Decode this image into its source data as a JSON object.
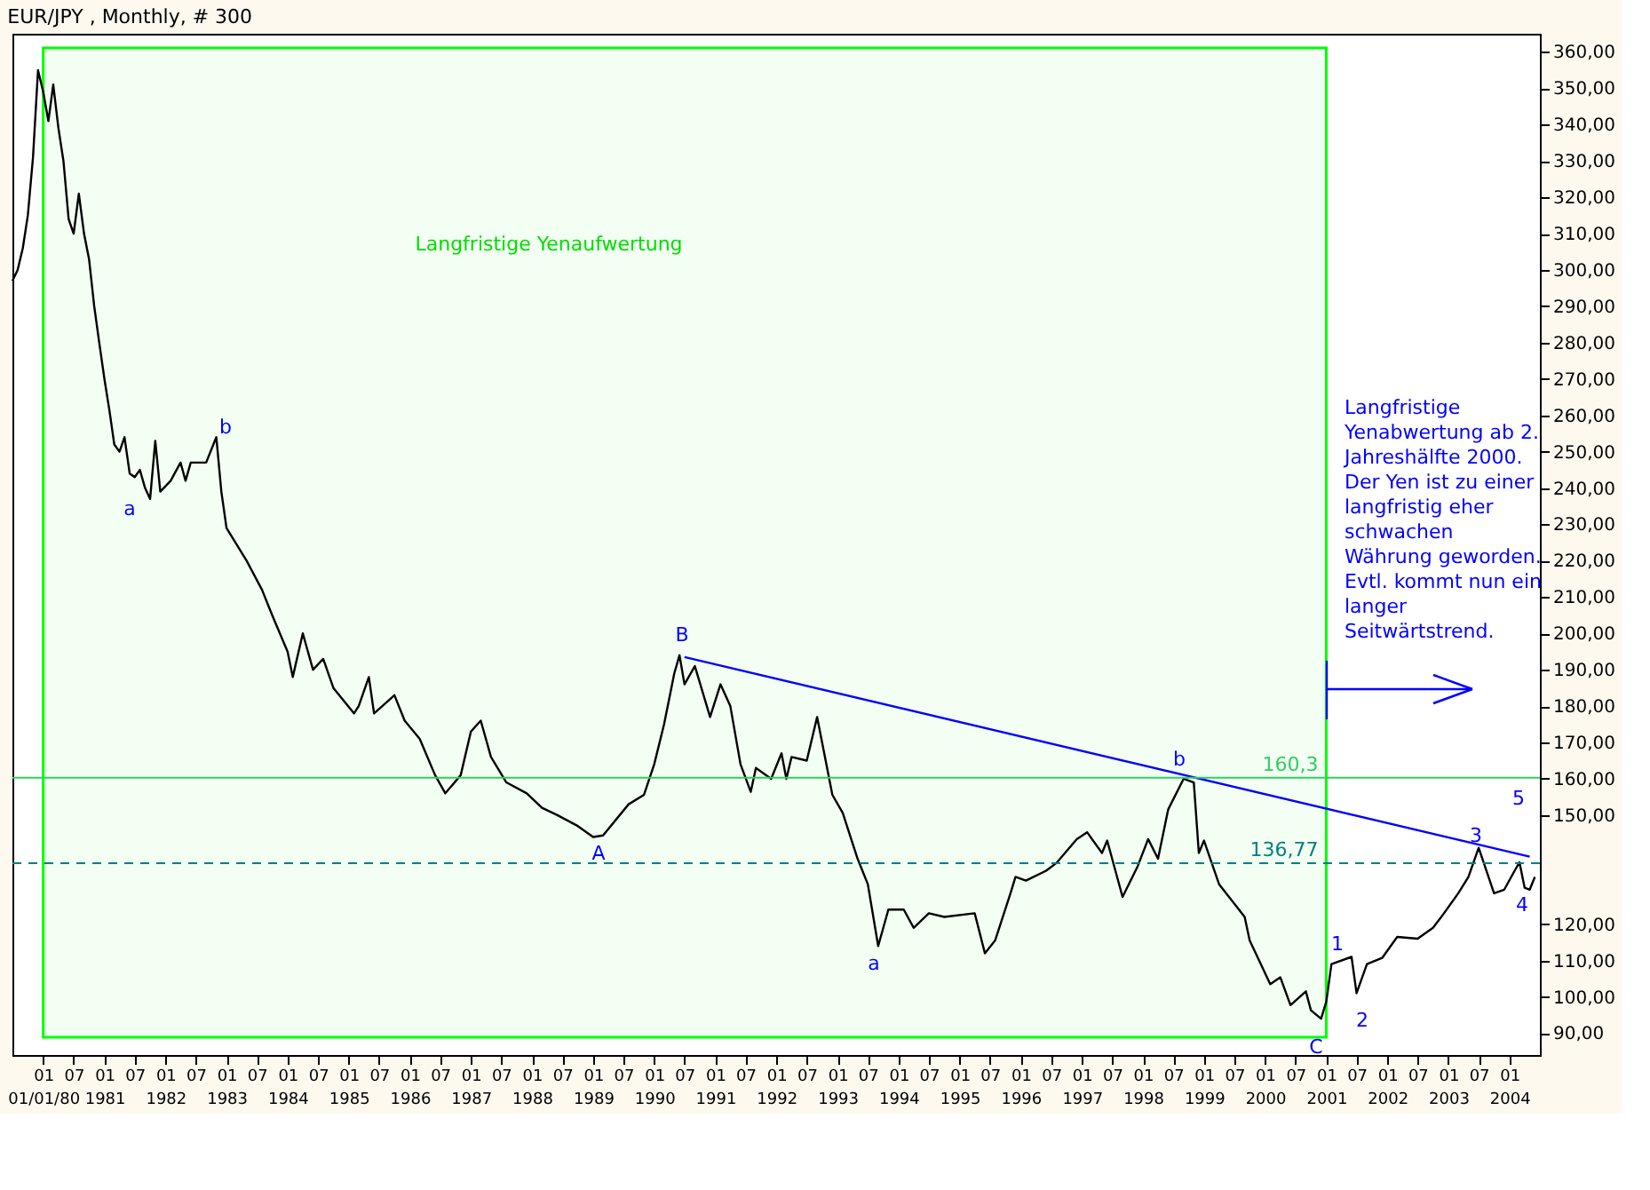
{
  "chart_data": {
    "type": "line",
    "title": "EUR/JPY , Monthly, # 300",
    "series": [
      {
        "color": "#000000",
        "x": [
          "1979-07",
          "1979-08",
          "1979-09",
          "1979-10",
          "1979-11",
          "1979-12",
          "1980-01",
          "1980-02",
          "1980-03",
          "1980-04",
          "1980-05",
          "1980-06",
          "1980-07",
          "1980-08",
          "1980-09",
          "1980-10",
          "1980-11",
          "1980-12",
          "1981-01",
          "1981-02",
          "1981-03",
          "1981-04",
          "1981-05",
          "1981-06",
          "1981-07",
          "1981-08",
          "1981-09",
          "1981-10",
          "1981-11",
          "1981-12",
          "1982-02",
          "1982-04",
          "1982-05",
          "1982-06",
          "1982-09",
          "1982-11",
          "1982-12",
          "1983-01",
          "1983-05",
          "1983-08",
          "1983-10",
          "1984-01",
          "1984-02",
          "1984-04",
          "1984-06",
          "1984-08",
          "1984-10",
          "1985-02",
          "1985-03",
          "1985-05",
          "1985-06",
          "1985-10",
          "1985-12",
          "1986-03",
          "1986-06",
          "1986-08",
          "1986-11",
          "1987-01",
          "1987-03",
          "1987-05",
          "1987-08",
          "1987-12",
          "1988-03",
          "1988-06",
          "1988-10",
          "1989-01",
          "1989-03",
          "1989-08",
          "1989-11",
          "1990-01",
          "1990-03",
          "1990-05",
          "1990-06",
          "1990-07",
          "1990-09",
          "1990-12",
          "1991-02",
          "1991-04",
          "1991-06",
          "1991-08",
          "1991-09",
          "1991-12",
          "1992-02",
          "1992-03",
          "1992-04",
          "1992-07",
          "1992-09",
          "1992-12",
          "1993-02",
          "1993-05",
          "1993-07",
          "1993-09",
          "1993-11",
          "1994-02",
          "1994-04",
          "1994-07",
          "1994-10",
          "1995-04",
          "1995-06",
          "1995-08",
          "1995-11",
          "1995-12",
          "1996-02",
          "1996-06",
          "1996-08",
          "1996-12",
          "1997-02",
          "1997-05",
          "1997-06",
          "1997-09",
          "1997-12",
          "1998-02",
          "1998-04",
          "1998-06",
          "1998-09",
          "1998-11",
          "1998-12",
          "1999-01",
          "1999-04",
          "1999-09",
          "1999-10",
          "2000-02",
          "2000-04",
          "2000-06",
          "2000-09",
          "2000-10",
          "2000-12",
          "2001-01",
          "2001-02",
          "2001-06",
          "2001-07",
          "2001-09",
          "2001-12",
          "2002-03",
          "2002-07",
          "2002-10",
          "2002-12",
          "2003-03",
          "2003-05",
          "2003-07",
          "2003-10",
          "2003-12",
          "2004-02",
          "2004-03",
          "2004-04",
          "2004-05",
          "2004-06"
        ],
        "values": [
          297,
          300,
          306,
          315,
          331,
          355,
          349,
          341,
          351,
          339,
          330,
          314,
          310,
          321,
          310,
          303,
          290,
          280,
          270,
          261,
          252,
          250,
          254,
          244,
          243,
          245,
          240,
          237,
          253,
          239,
          242,
          247,
          242,
          247,
          247,
          254,
          239,
          229,
          220,
          212,
          205,
          195,
          188,
          200,
          190,
          193,
          185,
          178,
          180,
          188,
          178,
          183,
          176,
          171,
          161,
          156,
          161,
          173,
          176,
          166,
          159,
          156,
          152,
          150,
          147,
          144,
          144.4,
          153,
          155.6,
          164,
          175,
          189,
          194,
          186,
          191,
          177,
          186,
          180,
          164,
          156.4,
          163,
          160,
          167,
          160,
          166,
          165,
          177,
          155.6,
          150.6,
          138,
          131,
          114,
          124,
          124,
          119,
          123,
          122,
          123,
          112,
          115.5,
          128.5,
          133,
          132,
          134.7,
          136.8,
          143.4,
          145.3,
          139.6,
          143,
          127.5,
          136,
          143.4,
          138,
          151.6,
          160,
          159,
          139.6,
          143,
          131,
          122,
          115.5,
          103.5,
          105.4,
          97.7,
          101.5,
          96.3,
          94,
          98.7,
          109,
          111,
          101,
          109,
          110.7,
          116.5,
          116,
          119,
          122.7,
          128.5,
          133,
          141,
          128.5,
          129.5,
          134.7,
          137,
          130,
          129.5,
          133
        ]
      },
      {
        "type": "line",
        "color": "#0000ff",
        "x": [
          "1990-07",
          "2004-05"
        ],
        "values": [
          193.5,
          138.6
        ]
      }
    ],
    "xlim": [
      "1979-07",
      "2004-07"
    ],
    "xticks": [
      {
        "value": "1980-01",
        "label": "01\n01/01/80"
      },
      {
        "value": "1980-07",
        "label": "07"
      },
      {
        "value": "1981-01",
        "label": "01\n1981"
      },
      {
        "value": "1981-07",
        "label": "07"
      },
      {
        "value": "1982-01",
        "label": "01\n1982"
      },
      {
        "value": "1982-07",
        "label": "07"
      },
      {
        "value": "1983-01",
        "label": "01\n1983"
      },
      {
        "value": "1983-07",
        "label": "07"
      },
      {
        "value": "1984-01",
        "label": "01\n1984"
      },
      {
        "value": "1984-07",
        "label": "07"
      },
      {
        "value": "1985-01",
        "label": "01\n1985"
      },
      {
        "value": "1985-07",
        "label": "07"
      },
      {
        "value": "1986-01",
        "label": "01\n1986"
      },
      {
        "value": "1986-07",
        "label": "07"
      },
      {
        "value": "1987-01",
        "label": "01\n1987"
      },
      {
        "value": "1987-07",
        "label": "07"
      },
      {
        "value": "1988-01",
        "label": "01\n1988"
      },
      {
        "value": "1988-07",
        "label": "07"
      },
      {
        "value": "1989-01",
        "label": "01\n1989"
      },
      {
        "value": "1989-07",
        "label": "07"
      },
      {
        "value": "1990-01",
        "label": "01\n1990"
      },
      {
        "value": "1990-07",
        "label": "07"
      },
      {
        "value": "1991-01",
        "label": "01\n1991"
      },
      {
        "value": "1991-07",
        "label": "07"
      },
      {
        "value": "1992-01",
        "label": "01\n1992"
      },
      {
        "value": "1992-07",
        "label": "07"
      },
      {
        "value": "1993-01",
        "label": "01\n1993"
      },
      {
        "value": "1993-07",
        "label": "07"
      },
      {
        "value": "1994-01",
        "label": "01\n1994"
      },
      {
        "value": "1994-07",
        "label": "07"
      },
      {
        "value": "1995-01",
        "label": "01\n1995"
      },
      {
        "value": "1995-07",
        "label": "07"
      },
      {
        "value": "1996-01",
        "label": "01\n1996"
      },
      {
        "value": "1996-07",
        "label": "07"
      },
      {
        "value": "1997-01",
        "label": "01\n1997"
      },
      {
        "value": "1997-07",
        "label": "07"
      },
      {
        "value": "1998-01",
        "label": "01\n1998"
      },
      {
        "value": "1998-07",
        "label": "07"
      },
      {
        "value": "1999-01",
        "label": "01\n1999"
      },
      {
        "value": "1999-07",
        "label": "07"
      },
      {
        "value": "2000-01",
        "label": "01\n2000"
      },
      {
        "value": "2000-07",
        "label": "07"
      },
      {
        "value": "2001-01",
        "label": "01\n2001"
      },
      {
        "value": "2001-07",
        "label": "07"
      },
      {
        "value": "2002-01",
        "label": "01\n2002"
      },
      {
        "value": "2002-07",
        "label": "07"
      },
      {
        "value": "2003-01",
        "label": "01\n2003"
      },
      {
        "value": "2003-07",
        "label": "07"
      },
      {
        "value": "2004-01",
        "label": "01\n2004"
      }
    ],
    "ylim": [
      84,
      365
    ],
    "yticks": [
      {
        "value": 90,
        "label": "90,00"
      },
      {
        "value": 100,
        "label": "100,00"
      },
      {
        "value": 110,
        "label": "110,00"
      },
      {
        "value": 120,
        "label": "120,00"
      },
      {
        "value": 150,
        "label": "150,00"
      },
      {
        "value": 160,
        "label": "160,00"
      },
      {
        "value": 170,
        "label": "170,00"
      },
      {
        "value": 180,
        "label": "180,00"
      },
      {
        "value": 190,
        "label": "190,00"
      },
      {
        "value": 200,
        "label": "200,00"
      },
      {
        "value": 210,
        "label": "210,00"
      },
      {
        "value": 220,
        "label": "220,00"
      },
      {
        "value": 230,
        "label": "230,00"
      },
      {
        "value": 240,
        "label": "240,00"
      },
      {
        "value": 250,
        "label": "250,00"
      },
      {
        "value": 260,
        "label": "260,00"
      },
      {
        "value": 270,
        "label": "270,00"
      },
      {
        "value": 280,
        "label": "280,00"
      },
      {
        "value": 290,
        "label": "290,00"
      },
      {
        "value": 300,
        "label": "300,00"
      },
      {
        "value": 310,
        "label": "310,00"
      },
      {
        "value": 320,
        "label": "320,00"
      },
      {
        "value": 330,
        "label": "330,00"
      },
      {
        "value": 340,
        "label": "340,00"
      },
      {
        "value": 350,
        "label": "350,00"
      },
      {
        "value": 360,
        "label": "360,00"
      }
    ],
    "ref_lines": [
      {
        "axis": "y",
        "value": 136.77,
        "label": "136,77",
        "color": "#008080",
        "line_style": "dashed"
      },
      {
        "axis": "y",
        "value": 160.3,
        "label": "160,3",
        "color": "#33cc66",
        "line_style": "solid"
      }
    ],
    "bands": [
      {
        "axis": "x",
        "from": "1980-01",
        "to": "2001-01",
        "color": "#00ff00"
      }
    ],
    "annotations": [
      "Langfristige Yenaufwertung",
      "Langfristige\nYenabwertung ab 2.\nJahreshälfte 2000.\nDer Yen ist zu einer\nlangfristig eher\nschwachen\nWährung geworden.\nEvtl. kommt nun ein\nlanger\nSeitwärtstrend.",
      "a",
      "b",
      "A",
      "B",
      "a",
      "b",
      "C",
      "1",
      "2",
      "3",
      "4",
      "5"
    ],
    "grid": false,
    "line_style": "solid",
    "marker": "none"
  }
}
